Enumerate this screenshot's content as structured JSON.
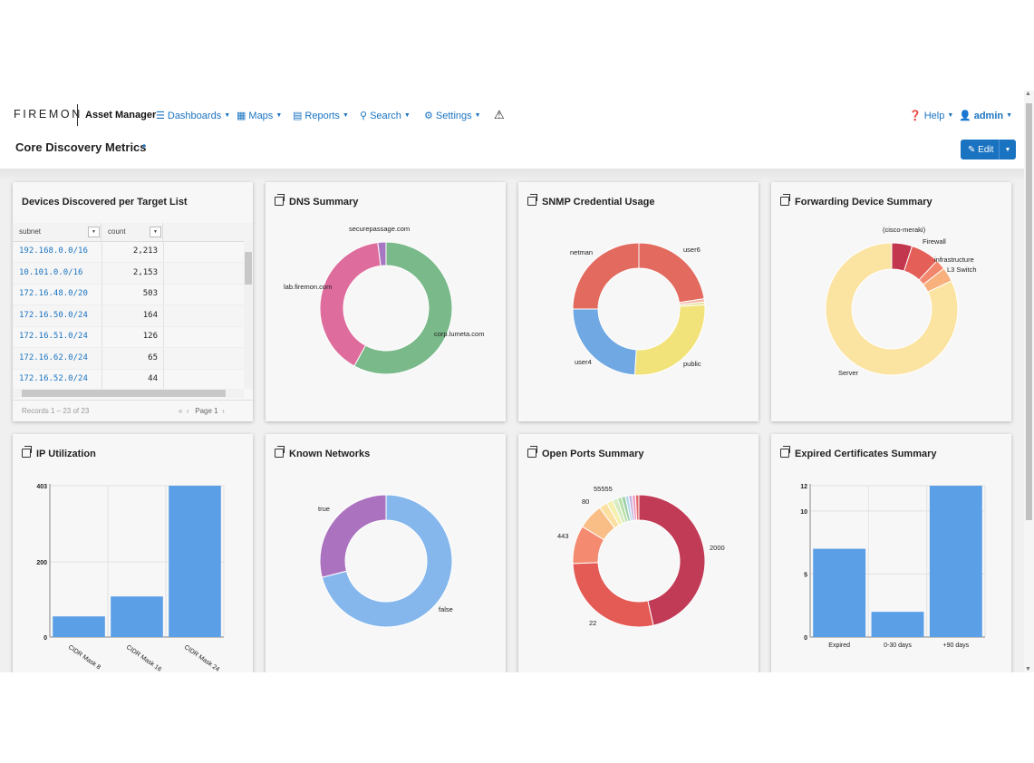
{
  "brand": {
    "logo": "FIREMON",
    "app": "Asset Manager"
  },
  "nav": {
    "dashboards": {
      "label": "Dashboards",
      "icon": "list-icon"
    },
    "maps": {
      "label": "Maps",
      "icon": "grid-icon"
    },
    "reports": {
      "label": "Reports",
      "icon": "report-icon"
    },
    "search": {
      "label": "Search",
      "icon": "search-icon"
    },
    "settings": {
      "label": "Settings",
      "icon": "gear-icon"
    },
    "help": {
      "label": "Help",
      "icon": "question-icon"
    },
    "user": {
      "label": "admin",
      "icon": "user-icon"
    }
  },
  "page": {
    "title": "Core Discovery Metrics",
    "edit_label": "Edit"
  },
  "panels": {
    "devices": {
      "title": "Devices Discovered per Target List",
      "columns": [
        "subnet",
        "count"
      ],
      "rows": [
        {
          "subnet": "192.168.0.0/16",
          "count": "2,213"
        },
        {
          "subnet": "10.101.0.0/16",
          "count": "2,153"
        },
        {
          "subnet": "172.16.48.0/20",
          "count": "503"
        },
        {
          "subnet": "172.16.50.0/24",
          "count": "164"
        },
        {
          "subnet": "172.16.51.0/24",
          "count": "126"
        },
        {
          "subnet": "172.16.62.0/24",
          "count": "65"
        },
        {
          "subnet": "172.16.52.0/24",
          "count": "44"
        }
      ],
      "records": "Records 1 – 23 of 23",
      "page_label": "Page",
      "page_number": "1"
    },
    "dns": {
      "title": "DNS Summary"
    },
    "snmp": {
      "title": "SNMP Credential Usage"
    },
    "forwarding": {
      "title": "Forwarding Device Summary"
    },
    "ip": {
      "title": "IP Utilization"
    },
    "known": {
      "title": "Known Networks"
    },
    "ports": {
      "title": "Open Ports Summary"
    },
    "certs": {
      "title": "Expired Certificates Summary"
    }
  },
  "chart_data": [
    {
      "id": "dns",
      "type": "pie",
      "title": "DNS Summary",
      "slices": [
        {
          "label": "corp.lumeta.com",
          "value": 58,
          "color": "#7ab98a"
        },
        {
          "label": "lab.firemon.com",
          "value": 40,
          "color": "#de6c9c"
        },
        {
          "label": "securepassage.com",
          "value": 2,
          "color": "#a678c2"
        }
      ]
    },
    {
      "id": "snmp",
      "type": "pie",
      "title": "SNMP Credential Usage",
      "slices": [
        {
          "label": "user6",
          "value": 22.5,
          "color": "#e26a5e"
        },
        {
          "label": "",
          "value": 0.8,
          "color": "#f5b5a5"
        },
        {
          "label": "",
          "value": 0.7,
          "color": "#e8e2a0"
        },
        {
          "label": "public",
          "value": 27,
          "color": "#f2e27a"
        },
        {
          "label": "user4",
          "value": 24,
          "color": "#6fa8e2"
        },
        {
          "label": "netman",
          "value": 25,
          "color": "#e26a5e"
        }
      ]
    },
    {
      "id": "forwarding",
      "type": "pie",
      "title": "Forwarding Device Summary",
      "slices": [
        {
          "label": "(cisco-meraki)",
          "value": 5,
          "color": "#c2374e"
        },
        {
          "label": "Firewall",
          "value": 7,
          "color": "#e35f57"
        },
        {
          "label": "infrastructure",
          "value": 2.5,
          "color": "#f3876e"
        },
        {
          "label": "L3 Switch",
          "value": 3.5,
          "color": "#f8b17c"
        },
        {
          "label": "Server",
          "value": 82,
          "color": "#fbe3a2"
        }
      ]
    },
    {
      "id": "ip",
      "type": "bar",
      "title": "IP Utilization",
      "categories": [
        "CIDR Mask 8",
        "CIDR Mask 16",
        "CIDR Mask 24"
      ],
      "values": [
        55,
        108,
        403
      ],
      "ylim": [
        0,
        403
      ],
      "yticks": [
        0,
        200,
        403
      ],
      "color": "#5b9fe6"
    },
    {
      "id": "known",
      "type": "pie",
      "title": "Known Networks",
      "slices": [
        {
          "label": "false",
          "value": 71,
          "color": "#86b7ec"
        },
        {
          "label": "true",
          "value": 29,
          "color": "#ab72bf"
        }
      ]
    },
    {
      "id": "ports",
      "type": "pie",
      "title": "Open Ports Summary",
      "slices": [
        {
          "label": "2000",
          "value": 45,
          "color": "#c13b56"
        },
        {
          "label": "22",
          "value": 27,
          "color": "#e45a55"
        },
        {
          "label": "443",
          "value": 9,
          "color": "#f48a70"
        },
        {
          "label": "80",
          "value": 6,
          "color": "#f9bd86"
        },
        {
          "label": "",
          "value": 2,
          "color": "#fbe0a2"
        },
        {
          "label": "",
          "value": 1.5,
          "color": "#f4f0b0"
        },
        {
          "label": "",
          "value": 1.2,
          "color": "#d7ebc0"
        },
        {
          "label": "",
          "value": 1,
          "color": "#b7dfa8"
        },
        {
          "label": "",
          "value": 0.9,
          "color": "#9ed0a8"
        },
        {
          "label": "",
          "value": 0.8,
          "color": "#b7d8ee"
        },
        {
          "label": "",
          "value": 0.8,
          "color": "#c7b2e0"
        },
        {
          "label": "",
          "value": 0.8,
          "color": "#ef9fc1"
        },
        {
          "label": "55555",
          "value": 0.8,
          "color": "#e36a6a"
        }
      ]
    },
    {
      "id": "certs",
      "type": "bar",
      "title": "Expired Certificates Summary",
      "categories": [
        "Expired",
        "0-30 days",
        "+90 days"
      ],
      "values": [
        7,
        2,
        12
      ],
      "ylim": [
        0,
        12
      ],
      "yticks": [
        0,
        5,
        10,
        12
      ],
      "color": "#5b9fe6"
    }
  ]
}
